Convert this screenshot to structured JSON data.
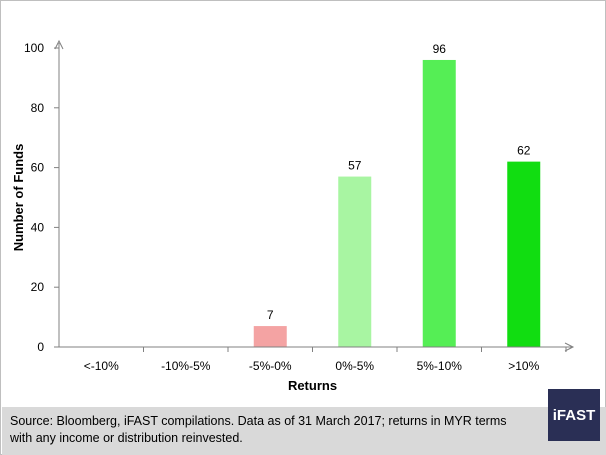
{
  "chart_data": {
    "type": "bar",
    "title": "",
    "xlabel": "Returns",
    "ylabel": "Number of Funds",
    "categories": [
      "<-10%",
      "-10%-5%",
      "-5%-0%",
      "0%-5%",
      "5%-10%",
      ">10%"
    ],
    "values": [
      0,
      0,
      7,
      57,
      96,
      62
    ],
    "data_labels": [
      "",
      "",
      "7",
      "57",
      "96",
      "62"
    ],
    "bar_colors": [
      "#f4a3a3",
      "#f4a3a3",
      "#f4a3a3",
      "#a8f5a2",
      "#55ee55",
      "#11dd11"
    ],
    "ylim": [
      0,
      100
    ],
    "yticks": [
      0,
      20,
      40,
      60,
      80,
      100
    ],
    "grid": false,
    "legend": "none"
  },
  "footer": {
    "source": "Source: Bloomberg, iFAST compilations. Data as of 31 March 2017;  returns in MYR terms with any income or distribution reinvested.",
    "logo_text": "iFAST"
  },
  "colors": {
    "axis": "#808080",
    "footer_bg": "#d9d9d9",
    "logo_bg": "#2a2f55"
  }
}
